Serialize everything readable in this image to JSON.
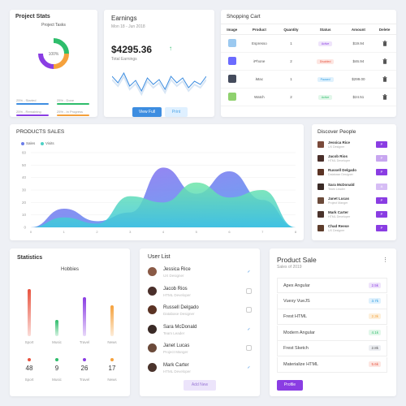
{
  "project_stats": {
    "title": "Project Stats",
    "chart_title": "Project Tasks",
    "center_label": "100%",
    "items": [
      {
        "label": "25% - Started",
        "color": "#3d8de0"
      },
      {
        "label": "25% - Done",
        "color": "#2ebd6b"
      },
      {
        "label": "25% - Remaining",
        "color": "#8a3de3"
      },
      {
        "label": "25% - In Progress",
        "color": "#f5a13c"
      }
    ]
  },
  "earnings": {
    "title": "Earnings",
    "date": "Mon 18 - Jun 2018",
    "amount": "$4295.36",
    "arrow": "↑",
    "total_label": "Total Earnings",
    "view_label": "View Full",
    "print_label": "Print",
    "line_values": [
      30,
      22,
      34,
      18,
      25,
      12,
      28,
      20,
      26,
      14,
      30,
      22,
      28,
      16,
      24,
      20,
      30
    ]
  },
  "cart": {
    "title": "Shopping Cart",
    "headers": [
      "Image",
      "Product",
      "Quantity",
      "Status",
      "Amount",
      "Delete"
    ],
    "rows": [
      {
        "product": "Espresso",
        "qty": "1",
        "status": "Active",
        "status_color": "#8a3de3",
        "status_bg": "#efe4fb",
        "amount": "$19.94",
        "img": "#9bc9f0"
      },
      {
        "product": "iPhone",
        "qty": "2",
        "status": "Disabled",
        "status_color": "#e8533f",
        "status_bg": "#fde6e2",
        "amount": "$46.94",
        "img": "#6b6bff"
      },
      {
        "product": "iMac",
        "qty": "1",
        "status": "Paused",
        "status_color": "#2b9be0",
        "status_bg": "#dff1fd",
        "amount": "$299.00",
        "img": "#444b5c"
      },
      {
        "product": "Watch",
        "qty": "2",
        "status": "Active",
        "status_color": "#2ebd6b",
        "status_bg": "#e2f7ea",
        "amount": "$24.51",
        "img": "#8fd16e"
      }
    ],
    "delete_icon": "trash-icon"
  },
  "product_sales": {
    "title": "PRODUCTS SALES",
    "legend": [
      {
        "name": "Sales",
        "color": "#6b7de8"
      },
      {
        "name": "Visits",
        "color": "#4dd0c4"
      }
    ]
  },
  "chart_data": {
    "type": "area",
    "title": "PRODUCTS SALES",
    "x": [
      0,
      1,
      2,
      3,
      4,
      5,
      6,
      7,
      8
    ],
    "ylim": [
      0,
      60
    ],
    "y_ticks": [
      0,
      10,
      20,
      30,
      40,
      50,
      60
    ],
    "series": [
      {
        "name": "Sales",
        "values": [
          0,
          15,
          5,
          12,
          48,
          27,
          45,
          22,
          0
        ]
      },
      {
        "name": "Visits",
        "values": [
          0,
          8,
          3,
          25,
          20,
          36,
          24,
          30,
          0
        ]
      }
    ],
    "grid": true,
    "legend": "top-left"
  },
  "discover": {
    "title": "Discover People",
    "people": [
      {
        "name": "Jessica Rice",
        "role": "UX Designer",
        "btn": "P",
        "btn_color": "#8a3de3",
        "av": "#7a4a3a"
      },
      {
        "name": "Jacob Rios",
        "role": "HTML Developer",
        "btn": "P",
        "btn_color": "#c8a6f0",
        "av": "#4a2f2a"
      },
      {
        "name": "Russell Delgado",
        "role": "Database Designer",
        "btn": "P",
        "btn_color": "#8a3de3",
        "av": "#5b3324"
      },
      {
        "name": "Sara McDonald",
        "role": "Team Leader",
        "btn": "A",
        "btn_color": "#d6bdf5",
        "av": "#3a2a26"
      },
      {
        "name": "Janet Lucas",
        "role": "Project Manger",
        "btn": "P",
        "btn_color": "#8a3de3",
        "av": "#6b4a3a"
      },
      {
        "name": "Mark Carter",
        "role": "HTML Developer",
        "btn": "P",
        "btn_color": "#8a3de3",
        "av": "#4a332c"
      },
      {
        "name": "Chad Reese",
        "role": "UX Designer",
        "btn": "P",
        "btn_color": "#8a3de3",
        "av": "#5e3d2c"
      }
    ]
  },
  "statistics": {
    "title": "Statistics",
    "chart_title": "Hobbies",
    "items": [
      {
        "label": "Sport",
        "value": "48",
        "color": "#e8533f",
        "level": 0.9
      },
      {
        "label": "Music",
        "value": "9",
        "color": "#2ebd6b",
        "level": 0.32
      },
      {
        "label": "Travel",
        "value": "26",
        "color": "#8a3de3",
        "level": 0.75
      },
      {
        "label": "News",
        "value": "17",
        "color": "#f5a13c",
        "level": 0.6
      }
    ]
  },
  "user_list": {
    "title": "User List",
    "users": [
      {
        "name": "Jessica Rice",
        "role": "UX Designer",
        "checked": true,
        "av": "#8a5a46"
      },
      {
        "name": "Jacob Rios",
        "role": "HTML Developer",
        "checked": false,
        "av": "#4a2f2a"
      },
      {
        "name": "Russell Delgado",
        "role": "Database Designer",
        "checked": false,
        "av": "#5b3324"
      },
      {
        "name": "Sara McDonald",
        "role": "Team Leader",
        "checked": true,
        "av": "#3a2a26"
      },
      {
        "name": "Janet Lucas",
        "role": "Project Manger",
        "checked": false,
        "av": "#6b4a3a"
      },
      {
        "name": "Mark Carter",
        "role": "HTML Developer",
        "checked": true,
        "av": "#4a332c"
      }
    ],
    "add_label": "Add New"
  },
  "product_sale": {
    "title": "Product Sale",
    "since": "Sales of 2019",
    "items": [
      {
        "name": "Apex Angular",
        "value": "2.5k",
        "color": "#8a3de3",
        "bg": "#efe4fb"
      },
      {
        "name": "Vuexy VueJS",
        "value": "3.7k",
        "color": "#2b9be0",
        "bg": "#dff1fd"
      },
      {
        "name": "Frest HTML",
        "value": "2.3k",
        "color": "#f5a13c",
        "bg": "#fdf0dc"
      },
      {
        "name": "Modern Angular",
        "value": "4.1k",
        "color": "#2ebd6b",
        "bg": "#e2f7ea"
      },
      {
        "name": "Frest Sketch",
        "value": "2.8k",
        "color": "#555",
        "bg": "#eceef2"
      },
      {
        "name": "Materialize HTML",
        "value": "5.6k",
        "color": "#e8533f",
        "bg": "#fde6e2"
      }
    ],
    "profile_label": "Profile"
  }
}
